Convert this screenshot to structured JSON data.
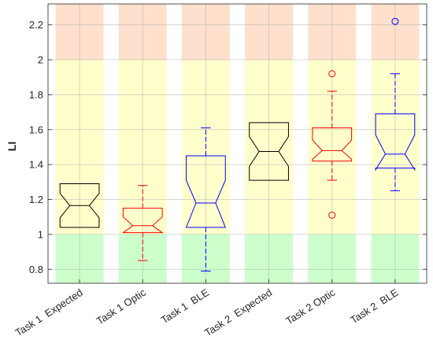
{
  "chart_data": {
    "type": "box",
    "title": "",
    "xlabel": "",
    "ylabel": "LI",
    "ylim": [
      0.72,
      2.32
    ],
    "yticks": [
      0.8,
      1,
      1.2,
      1.4,
      1.6,
      1.8,
      2,
      2.2
    ],
    "ytick_labels": [
      "0.8",
      "1",
      "1.2",
      "1.4",
      "1.6",
      "1.8",
      "2",
      "2.2"
    ],
    "grid": true,
    "bands": [
      {
        "from": 0.72,
        "to": 1.0,
        "color": "#ccffcc"
      },
      {
        "from": 1.0,
        "to": 2.0,
        "color": "#ffffcc"
      },
      {
        "from": 2.0,
        "to": 2.32,
        "color": "#ffe0cc"
      }
    ],
    "categories": [
      "Task 1  Expected",
      "Task 1 Optic",
      "Task 1  BLE",
      "Task 2  Expected",
      "Task 2 Optic",
      "Task 2  BLE"
    ],
    "boxes": [
      {
        "category": "Task 1  Expected",
        "color": "#000000",
        "q1": 1.04,
        "median": 1.165,
        "q3": 1.29,
        "notch_low": 1.095,
        "notch_high": 1.235,
        "whisker_low": null,
        "whisker_high": null,
        "outliers": []
      },
      {
        "category": "Task 1 Optic",
        "color": "#ff0000",
        "q1": 1.01,
        "median": 1.05,
        "q3": 1.15,
        "notch_low": 1.01,
        "notch_high": 1.1,
        "whisker_low": 0.85,
        "whisker_high": 1.28,
        "outliers": []
      },
      {
        "category": "Task 1  BLE",
        "color": "#0000ff",
        "q1": 1.04,
        "median": 1.18,
        "q3": 1.45,
        "notch_low": 1.04,
        "notch_high": 1.31,
        "whisker_low": 0.79,
        "whisker_high": 1.61,
        "outliers": []
      },
      {
        "category": "Task 2  Expected",
        "color": "#000000",
        "q1": 1.31,
        "median": 1.475,
        "q3": 1.64,
        "notch_low": 1.39,
        "notch_high": 1.56,
        "whisker_low": null,
        "whisker_high": null,
        "outliers": []
      },
      {
        "category": "Task 2 Optic",
        "color": "#ff0000",
        "q1": 1.42,
        "median": 1.48,
        "q3": 1.61,
        "notch_low": 1.43,
        "notch_high": 1.54,
        "whisker_low": 1.31,
        "whisker_high": 1.82,
        "outliers": [
          1.11,
          1.92
        ]
      },
      {
        "category": "Task 2  BLE",
        "color": "#0000ff",
        "q1": 1.38,
        "median": 1.46,
        "q3": 1.69,
        "notch_low": 1.37,
        "notch_high": 1.57,
        "whisker_low": 1.25,
        "whisker_high": 1.92,
        "outliers": [
          2.22
        ]
      }
    ]
  }
}
